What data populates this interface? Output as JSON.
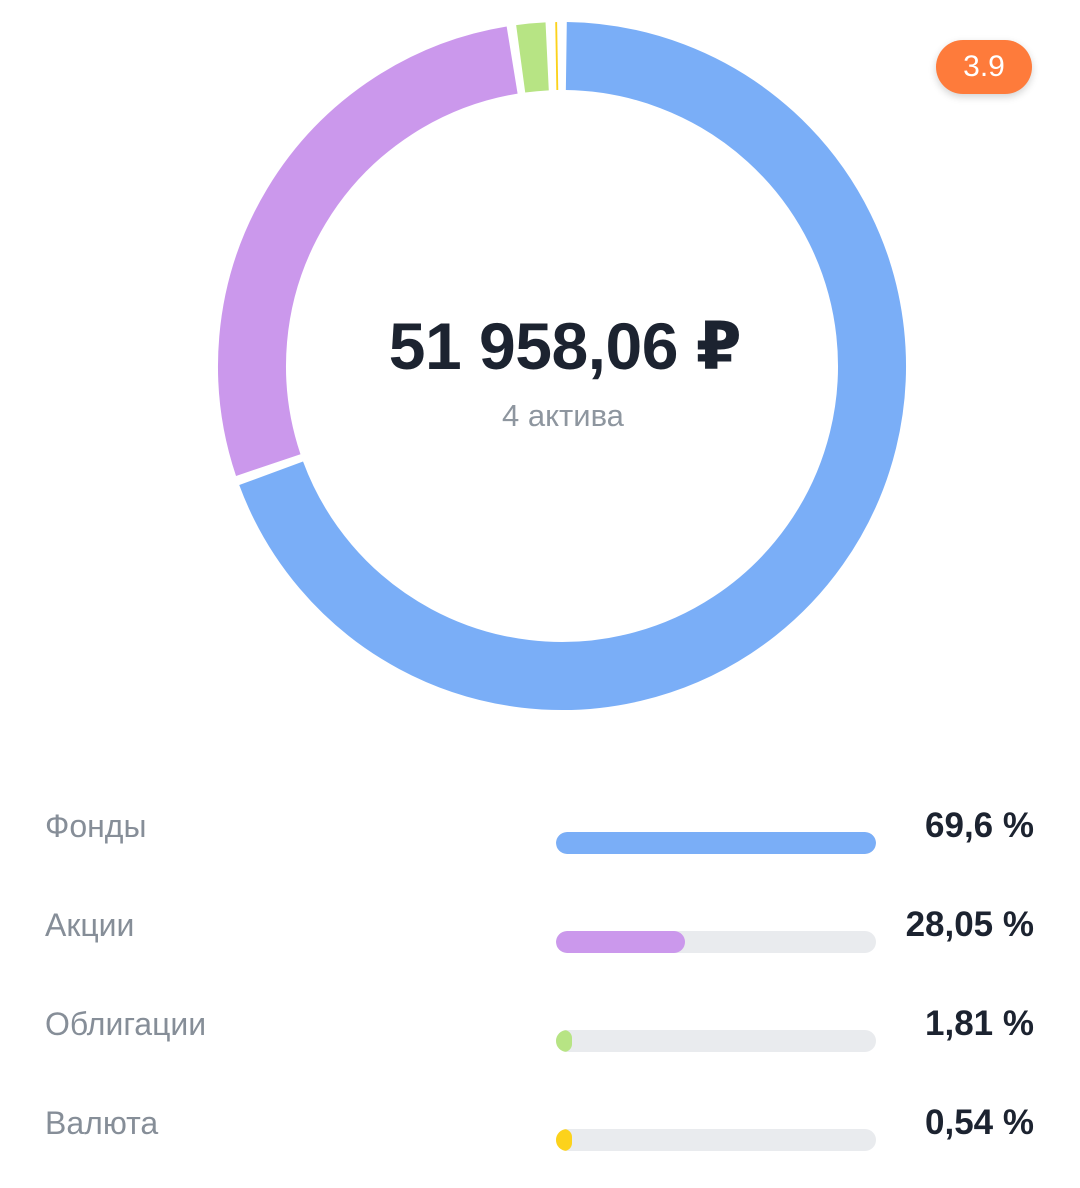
{
  "badge": "3.9",
  "summary": {
    "total": "51 958,06 ₽",
    "subtitle": "4 актива"
  },
  "chart_data": {
    "type": "donut",
    "categories": [
      "Фонды",
      "Акции",
      "Облигации",
      "Валюта"
    ],
    "values": [
      69.6,
      28.05,
      1.81,
      0.54
    ],
    "value_labels": [
      "69,6 %",
      "28,05 %",
      "1,81 %",
      "0,54 %"
    ],
    "colors": [
      "#7aaef7",
      "#cb98ec",
      "#b7e484",
      "#fcd21b"
    ],
    "unit": "%"
  }
}
